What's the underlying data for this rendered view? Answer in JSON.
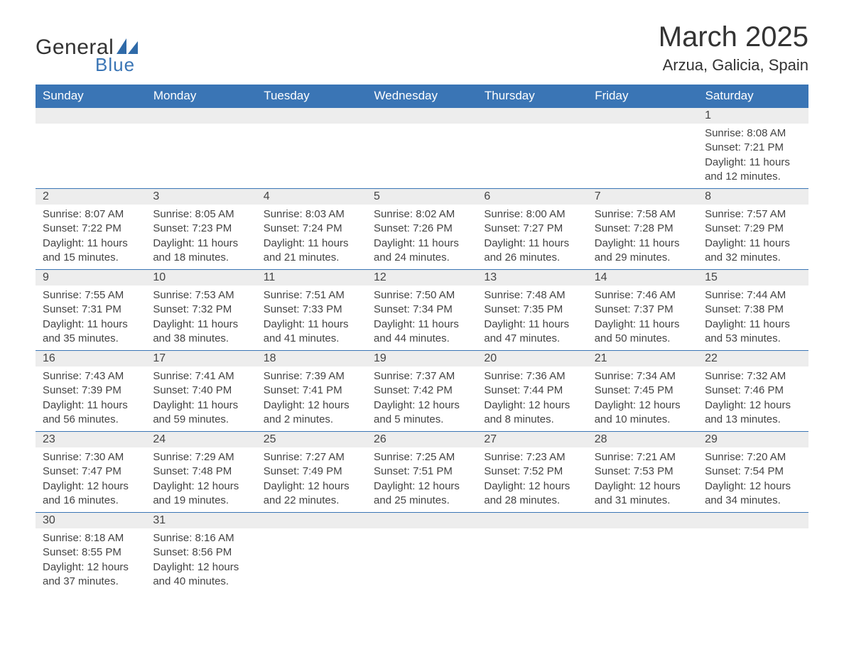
{
  "logo": {
    "text_general": "General",
    "text_blue": "Blue",
    "general_color": "#333333",
    "blue_color": "#3a75b5",
    "sail_color": "#2f6aa8"
  },
  "header": {
    "month_title": "March 2025",
    "location": "Arzua, Galicia, Spain",
    "title_fontsize": 40,
    "location_fontsize": 22
  },
  "calendar": {
    "type": "table",
    "header_bg": "#3a75b5",
    "header_text_color": "#ffffff",
    "daynum_bg": "#ededed",
    "row_border_color": "#3a75b5",
    "text_color": "#444444",
    "body_fontsize": 15,
    "header_fontsize": 17,
    "columns": [
      "Sunday",
      "Monday",
      "Tuesday",
      "Wednesday",
      "Thursday",
      "Friday",
      "Saturday"
    ],
    "first_weekday_index": 6,
    "days": [
      {
        "n": 1,
        "sunrise": "8:08 AM",
        "sunset": "7:21 PM",
        "daylight": "11 hours and 12 minutes."
      },
      {
        "n": 2,
        "sunrise": "8:07 AM",
        "sunset": "7:22 PM",
        "daylight": "11 hours and 15 minutes."
      },
      {
        "n": 3,
        "sunrise": "8:05 AM",
        "sunset": "7:23 PM",
        "daylight": "11 hours and 18 minutes."
      },
      {
        "n": 4,
        "sunrise": "8:03 AM",
        "sunset": "7:24 PM",
        "daylight": "11 hours and 21 minutes."
      },
      {
        "n": 5,
        "sunrise": "8:02 AM",
        "sunset": "7:26 PM",
        "daylight": "11 hours and 24 minutes."
      },
      {
        "n": 6,
        "sunrise": "8:00 AM",
        "sunset": "7:27 PM",
        "daylight": "11 hours and 26 minutes."
      },
      {
        "n": 7,
        "sunrise": "7:58 AM",
        "sunset": "7:28 PM",
        "daylight": "11 hours and 29 minutes."
      },
      {
        "n": 8,
        "sunrise": "7:57 AM",
        "sunset": "7:29 PM",
        "daylight": "11 hours and 32 minutes."
      },
      {
        "n": 9,
        "sunrise": "7:55 AM",
        "sunset": "7:31 PM",
        "daylight": "11 hours and 35 minutes."
      },
      {
        "n": 10,
        "sunrise": "7:53 AM",
        "sunset": "7:32 PM",
        "daylight": "11 hours and 38 minutes."
      },
      {
        "n": 11,
        "sunrise": "7:51 AM",
        "sunset": "7:33 PM",
        "daylight": "11 hours and 41 minutes."
      },
      {
        "n": 12,
        "sunrise": "7:50 AM",
        "sunset": "7:34 PM",
        "daylight": "11 hours and 44 minutes."
      },
      {
        "n": 13,
        "sunrise": "7:48 AM",
        "sunset": "7:35 PM",
        "daylight": "11 hours and 47 minutes."
      },
      {
        "n": 14,
        "sunrise": "7:46 AM",
        "sunset": "7:37 PM",
        "daylight": "11 hours and 50 minutes."
      },
      {
        "n": 15,
        "sunrise": "7:44 AM",
        "sunset": "7:38 PM",
        "daylight": "11 hours and 53 minutes."
      },
      {
        "n": 16,
        "sunrise": "7:43 AM",
        "sunset": "7:39 PM",
        "daylight": "11 hours and 56 minutes."
      },
      {
        "n": 17,
        "sunrise": "7:41 AM",
        "sunset": "7:40 PM",
        "daylight": "11 hours and 59 minutes."
      },
      {
        "n": 18,
        "sunrise": "7:39 AM",
        "sunset": "7:41 PM",
        "daylight": "12 hours and 2 minutes."
      },
      {
        "n": 19,
        "sunrise": "7:37 AM",
        "sunset": "7:42 PM",
        "daylight": "12 hours and 5 minutes."
      },
      {
        "n": 20,
        "sunrise": "7:36 AM",
        "sunset": "7:44 PM",
        "daylight": "12 hours and 8 minutes."
      },
      {
        "n": 21,
        "sunrise": "7:34 AM",
        "sunset": "7:45 PM",
        "daylight": "12 hours and 10 minutes."
      },
      {
        "n": 22,
        "sunrise": "7:32 AM",
        "sunset": "7:46 PM",
        "daylight": "12 hours and 13 minutes."
      },
      {
        "n": 23,
        "sunrise": "7:30 AM",
        "sunset": "7:47 PM",
        "daylight": "12 hours and 16 minutes."
      },
      {
        "n": 24,
        "sunrise": "7:29 AM",
        "sunset": "7:48 PM",
        "daylight": "12 hours and 19 minutes."
      },
      {
        "n": 25,
        "sunrise": "7:27 AM",
        "sunset": "7:49 PM",
        "daylight": "12 hours and 22 minutes."
      },
      {
        "n": 26,
        "sunrise": "7:25 AM",
        "sunset": "7:51 PM",
        "daylight": "12 hours and 25 minutes."
      },
      {
        "n": 27,
        "sunrise": "7:23 AM",
        "sunset": "7:52 PM",
        "daylight": "12 hours and 28 minutes."
      },
      {
        "n": 28,
        "sunrise": "7:21 AM",
        "sunset": "7:53 PM",
        "daylight": "12 hours and 31 minutes."
      },
      {
        "n": 29,
        "sunrise": "7:20 AM",
        "sunset": "7:54 PM",
        "daylight": "12 hours and 34 minutes."
      },
      {
        "n": 30,
        "sunrise": "8:18 AM",
        "sunset": "8:55 PM",
        "daylight": "12 hours and 37 minutes."
      },
      {
        "n": 31,
        "sunrise": "8:16 AM",
        "sunset": "8:56 PM",
        "daylight": "12 hours and 40 minutes."
      }
    ],
    "labels": {
      "sunrise": "Sunrise:",
      "sunset": "Sunset:",
      "daylight": "Daylight:"
    }
  }
}
